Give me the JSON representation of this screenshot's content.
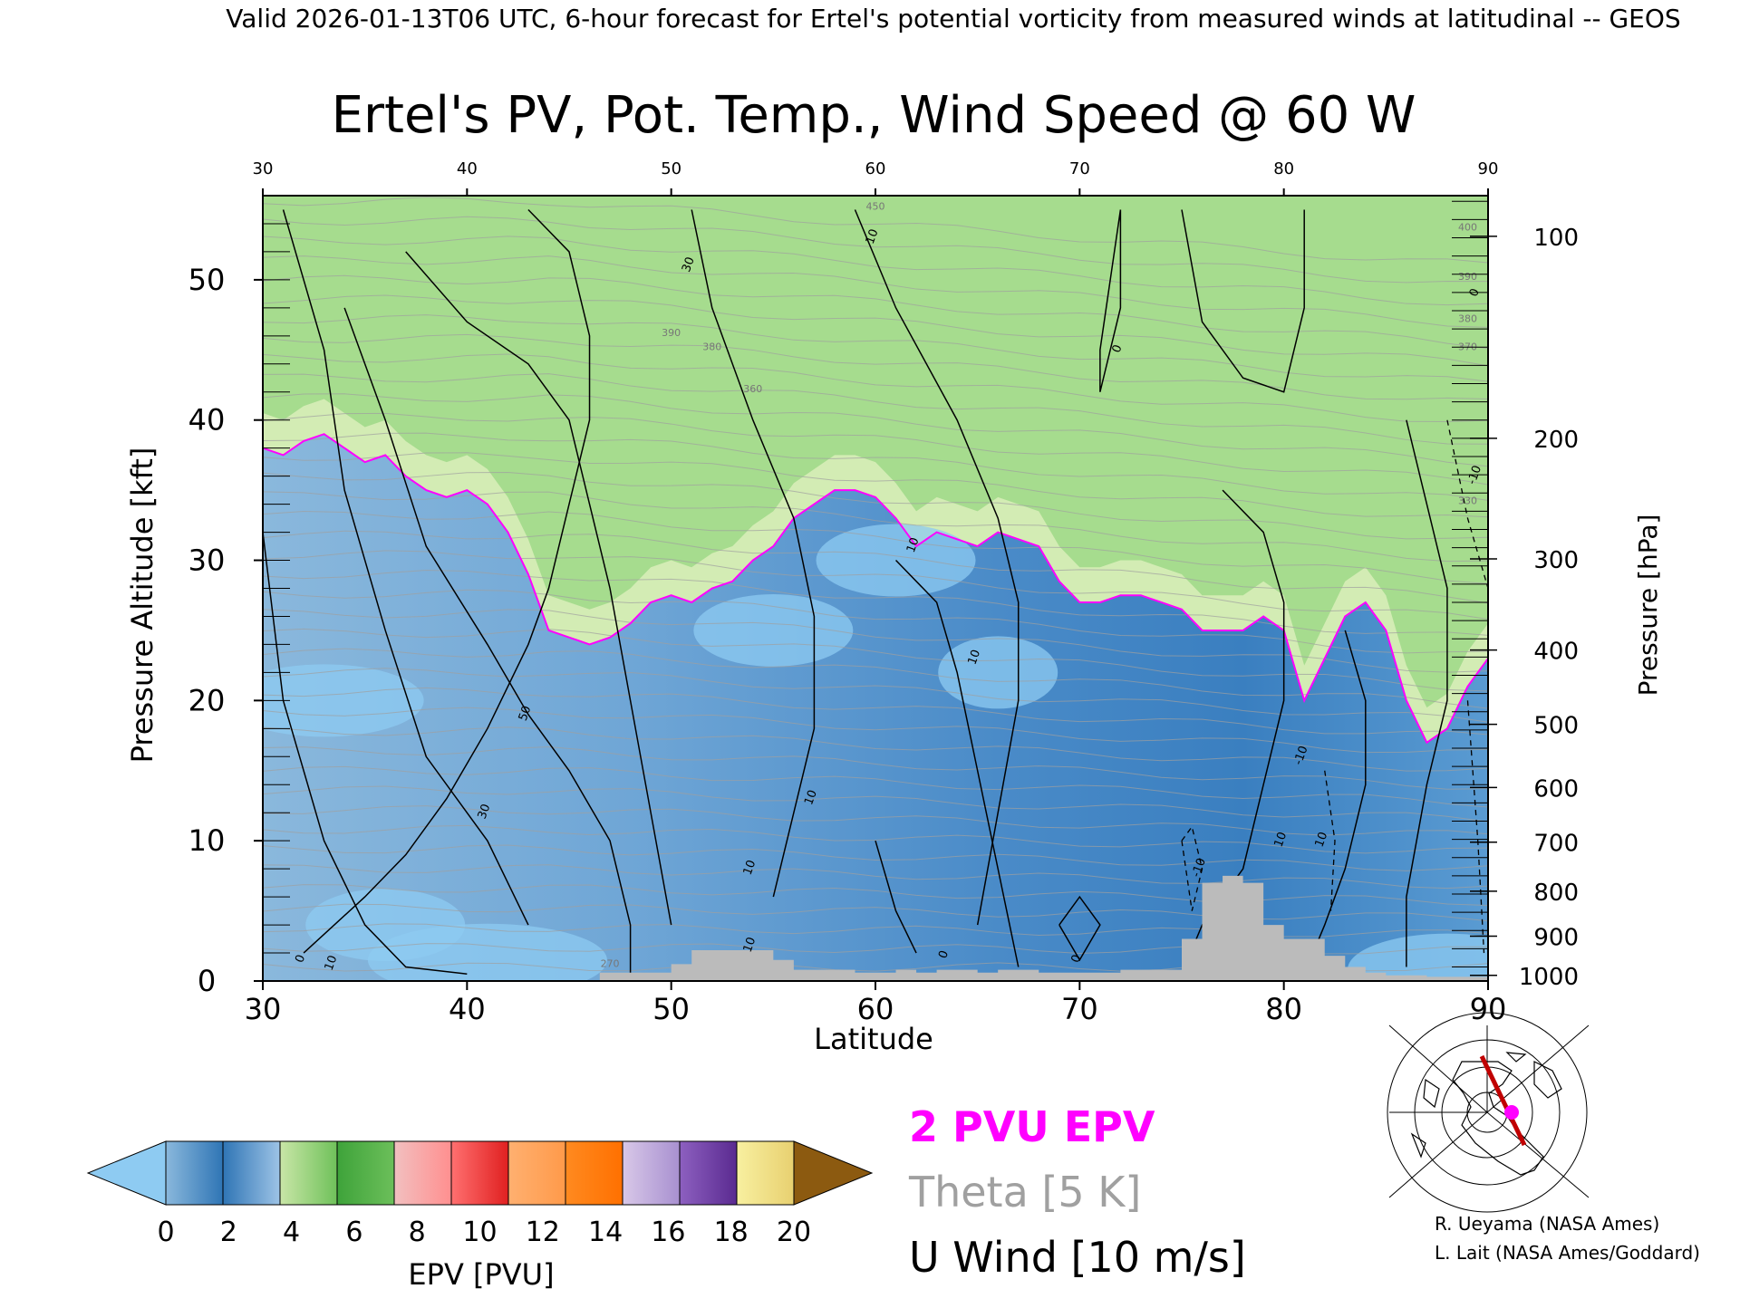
{
  "header": {
    "top_line": "Valid 2026-01-13T06 UTC, 6-hour forecast for Ertel's potential vorticity from measured winds at latitudinal -- GEOS",
    "title": "Ertel's PV, Pot. Temp., Wind Speed @ 60 W"
  },
  "colors": {
    "pv_contour": "#ff00ff",
    "theta": "#a0a0a0",
    "wind": "#000000",
    "terrain": "#bbbbbb"
  },
  "chart_data": {
    "type": "heatmap",
    "xlabel": "Latitude",
    "ylabel_left": "Pressure Altitude [kft]",
    "ylabel_right": "Pressure [hPa]",
    "xlim": [
      30,
      90
    ],
    "ylim": [
      0,
      56
    ],
    "x_ticks": [
      30,
      40,
      50,
      60,
      70,
      80,
      90
    ],
    "y_ticks": [
      0,
      10,
      20,
      30,
      40,
      50
    ],
    "pressure_ticks": [
      {
        "p": 100,
        "kft": 53.1
      },
      {
        "p": 200,
        "kft": 38.7
      },
      {
        "p": 300,
        "kft": 30.1
      },
      {
        "p": 400,
        "kft": 23.6
      },
      {
        "p": 500,
        "kft": 18.3
      },
      {
        "p": 600,
        "kft": 13.8
      },
      {
        "p": 700,
        "kft": 9.9
      },
      {
        "p": 800,
        "kft": 6.4
      },
      {
        "p": 900,
        "kft": 3.2
      },
      {
        "p": 1000,
        "kft": 0.4
      }
    ],
    "tropopause_2pvu": [
      [
        30,
        38
      ],
      [
        31,
        37.5
      ],
      [
        32,
        38.5
      ],
      [
        33,
        39
      ],
      [
        34,
        38
      ],
      [
        35,
        37
      ],
      [
        36,
        37.5
      ],
      [
        37,
        36
      ],
      [
        38,
        35
      ],
      [
        39,
        34.5
      ],
      [
        40,
        35
      ],
      [
        41,
        34
      ],
      [
        42,
        32
      ],
      [
        43,
        29
      ],
      [
        44,
        25
      ],
      [
        45,
        24.5
      ],
      [
        46,
        24
      ],
      [
        47,
        24.5
      ],
      [
        48,
        25.5
      ],
      [
        49,
        27
      ],
      [
        50,
        27.5
      ],
      [
        51,
        27
      ],
      [
        52,
        28
      ],
      [
        53,
        28.5
      ],
      [
        54,
        30
      ],
      [
        55,
        31
      ],
      [
        56,
        33
      ],
      [
        57,
        34
      ],
      [
        58,
        35
      ],
      [
        59,
        35
      ],
      [
        60,
        34.5
      ],
      [
        61,
        33
      ],
      [
        62,
        31
      ],
      [
        63,
        32
      ],
      [
        64,
        31.5
      ],
      [
        65,
        31
      ],
      [
        66,
        32
      ],
      [
        67,
        31.5
      ],
      [
        68,
        31
      ],
      [
        69,
        28.5
      ],
      [
        70,
        27
      ],
      [
        71,
        27
      ],
      [
        72,
        27.5
      ],
      [
        73,
        27.5
      ],
      [
        74,
        27
      ],
      [
        75,
        26.5
      ],
      [
        76,
        25
      ],
      [
        77,
        25
      ],
      [
        78,
        25
      ],
      [
        79,
        26
      ],
      [
        80,
        25
      ],
      [
        81,
        20
      ],
      [
        82,
        23
      ],
      [
        83,
        26
      ],
      [
        84,
        27
      ],
      [
        85,
        25
      ],
      [
        86,
        20
      ],
      [
        87,
        17
      ],
      [
        88,
        18
      ],
      [
        89,
        21
      ],
      [
        90,
        23
      ]
    ],
    "pv_bands": [
      {
        "offset": 2.5,
        "color": "#a6dc8e"
      },
      {
        "offset": 4.5,
        "color": "#3ea33a"
      },
      {
        "offset": 7,
        "color": "#6cbf5a"
      },
      {
        "offset": 8.5,
        "color": "#f29fa0"
      },
      {
        "offset": 11,
        "color": "#ff8f8f"
      },
      {
        "offset": 14.5,
        "color": "#e53a3a"
      },
      {
        "offset": 17,
        "color": "#ff9a4a"
      },
      {
        "offset": 20,
        "color": "#ff8010"
      },
      {
        "offset": 24,
        "color": "#b9a4d8"
      },
      {
        "offset": 28,
        "color": "#6e3fa6"
      },
      {
        "offset": 31,
        "color": "#f3ed9a"
      }
    ],
    "terrain": [
      [
        46.5,
        0.6
      ],
      [
        47,
        0.6
      ],
      [
        48,
        0.6
      ],
      [
        49,
        0.6
      ],
      [
        50,
        1.2
      ],
      [
        51,
        2.2
      ],
      [
        52,
        2.2
      ],
      [
        53,
        2.2
      ],
      [
        54,
        2.2
      ],
      [
        55,
        1.5
      ],
      [
        56,
        0.8
      ],
      [
        57,
        0.8
      ],
      [
        58,
        0.8
      ],
      [
        59,
        0.6
      ],
      [
        60,
        0.6
      ],
      [
        61,
        0.8
      ],
      [
        62,
        0.6
      ],
      [
        63,
        0.8
      ],
      [
        64,
        0.8
      ],
      [
        65,
        0.6
      ],
      [
        66,
        0.8
      ],
      [
        67,
        0.8
      ],
      [
        68,
        0.6
      ],
      [
        69,
        0.6
      ],
      [
        70,
        0.6
      ],
      [
        71,
        0.6
      ],
      [
        72,
        0.8
      ],
      [
        73,
        0.8
      ],
      [
        74,
        0.8
      ],
      [
        75,
        3.0
      ],
      [
        76,
        7.0
      ],
      [
        77,
        7.5
      ],
      [
        78,
        7.0
      ],
      [
        79,
        4.0
      ],
      [
        80,
        3.0
      ],
      [
        81,
        3.0
      ],
      [
        82,
        1.8
      ],
      [
        83,
        1.0
      ],
      [
        84,
        0.6
      ],
      [
        85,
        0.4
      ],
      [
        86,
        0.4
      ],
      [
        87,
        0.3
      ],
      [
        88,
        0.3
      ],
      [
        89,
        0.3
      ],
      [
        90,
        0.3
      ]
    ],
    "wind_contour_labels": [
      {
        "lat": 62,
        "kft": 31,
        "text": "10"
      },
      {
        "lat": 43,
        "kft": 19,
        "text": "50"
      },
      {
        "lat": 41,
        "kft": 12,
        "text": "30"
      },
      {
        "lat": 57,
        "kft": 13,
        "text": "10"
      },
      {
        "lat": 54,
        "kft": 8,
        "text": "10"
      },
      {
        "lat": 54,
        "kft": 2.5,
        "text": "10"
      },
      {
        "lat": 32,
        "kft": 1.5,
        "text": "0"
      },
      {
        "lat": 33.5,
        "kft": 1.2,
        "text": "10"
      },
      {
        "lat": 65,
        "kft": 23,
        "text": "10"
      },
      {
        "lat": 81,
        "kft": 16,
        "text": "-10"
      },
      {
        "lat": 80,
        "kft": 10,
        "text": "10"
      },
      {
        "lat": 82,
        "kft": 10,
        "text": "10"
      },
      {
        "lat": 76,
        "kft": 8,
        "text": "-10"
      },
      {
        "lat": 72,
        "kft": 45,
        "text": "0"
      },
      {
        "lat": 60,
        "kft": 53,
        "text": "10"
      },
      {
        "lat": 51,
        "kft": 51,
        "text": "30"
      },
      {
        "lat": 89.5,
        "kft": 36,
        "text": "-10"
      },
      {
        "lat": 89.5,
        "kft": 49,
        "text": "0"
      },
      {
        "lat": 63.5,
        "kft": 1.8,
        "text": "0"
      },
      {
        "lat": 70,
        "kft": 1.5,
        "text": "0"
      }
    ],
    "theta_labels": [
      {
        "lat": 50,
        "kft": 46,
        "text": "390"
      },
      {
        "lat": 52,
        "kft": 45,
        "text": "380"
      },
      {
        "lat": 54,
        "kft": 42,
        "text": "360"
      },
      {
        "lat": 89,
        "kft": 47,
        "text": "380"
      },
      {
        "lat": 89,
        "kft": 45,
        "text": "370"
      },
      {
        "lat": 89,
        "kft": 53.5,
        "text": "400"
      },
      {
        "lat": 89,
        "kft": 50,
        "text": "390"
      },
      {
        "lat": 89,
        "kft": 34,
        "text": "330"
      },
      {
        "lat": 47,
        "kft": 1,
        "text": "270"
      },
      {
        "lat": 60,
        "kft": 55,
        "text": "450"
      }
    ],
    "colorbar": {
      "label": "EPV [PVU]",
      "ticks": [
        "0",
        "2",
        "4",
        "6",
        "8",
        "10",
        "12",
        "14",
        "16",
        "18",
        "20"
      ],
      "under_color": "#8ecbf2",
      "over_color": "#8c5a10",
      "segments": [
        [
          "#8ab8dc",
          "#2f75b5"
        ],
        [
          "#2f75b5",
          "#9dc3e6"
        ],
        [
          "#c9e6a7",
          "#6fc15a"
        ],
        [
          "#3ea33a",
          "#6cbf5a"
        ],
        [
          "#f2c0c0",
          "#ff8f8f"
        ],
        [
          "#ff7070",
          "#e02020"
        ],
        [
          "#ffb070",
          "#ff9a4a"
        ],
        [
          "#ff8a20",
          "#ff7000"
        ],
        [
          "#d8c8e8",
          "#a890d0"
        ],
        [
          "#8d60c0",
          "#5a2a90"
        ],
        [
          "#f8f0a0",
          "#e8d070"
        ]
      ]
    }
  },
  "legend": {
    "pv": "2 PVU EPV",
    "theta": "Theta [5 K]",
    "wind": "U Wind [10 m/s]"
  },
  "credits": {
    "line1": "R. Ueyama (NASA Ames)",
    "line2": "L. Lait (NASA Ames/Goddard)"
  }
}
